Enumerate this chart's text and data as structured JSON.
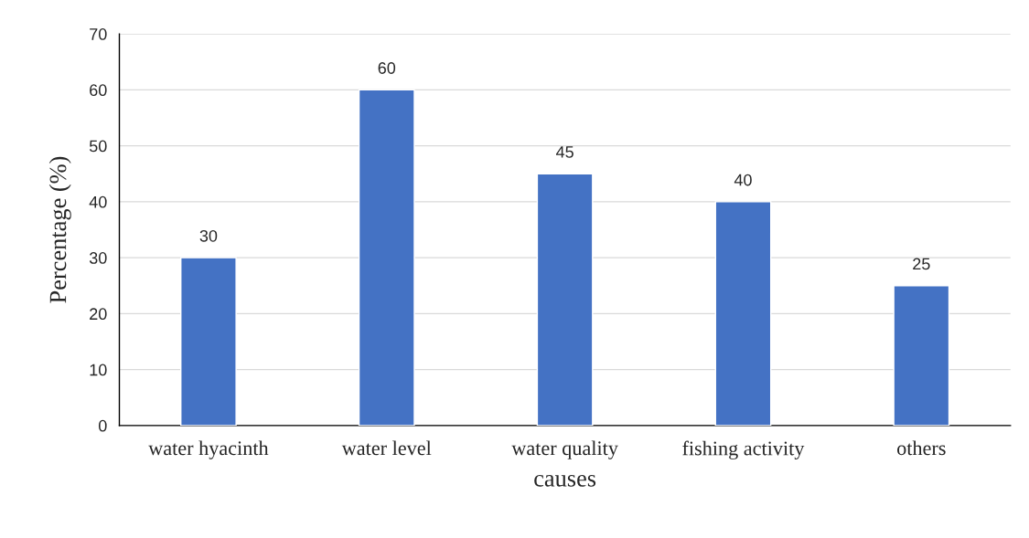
{
  "chart_data": {
    "type": "bar",
    "xlabel": "causes",
    "ylabel": "Percentage (%)",
    "categories": [
      "water hyacinth",
      "water level",
      "water quality",
      "fishing activity",
      "others"
    ],
    "values": [
      30,
      60,
      45,
      40,
      25
    ],
    "color": "#4472c4",
    "ylim": [
      0,
      70
    ],
    "yticks": [
      0,
      10,
      20,
      30,
      40,
      50,
      60,
      70
    ],
    "grid": "y",
    "data_labels": true,
    "legend": false
  }
}
